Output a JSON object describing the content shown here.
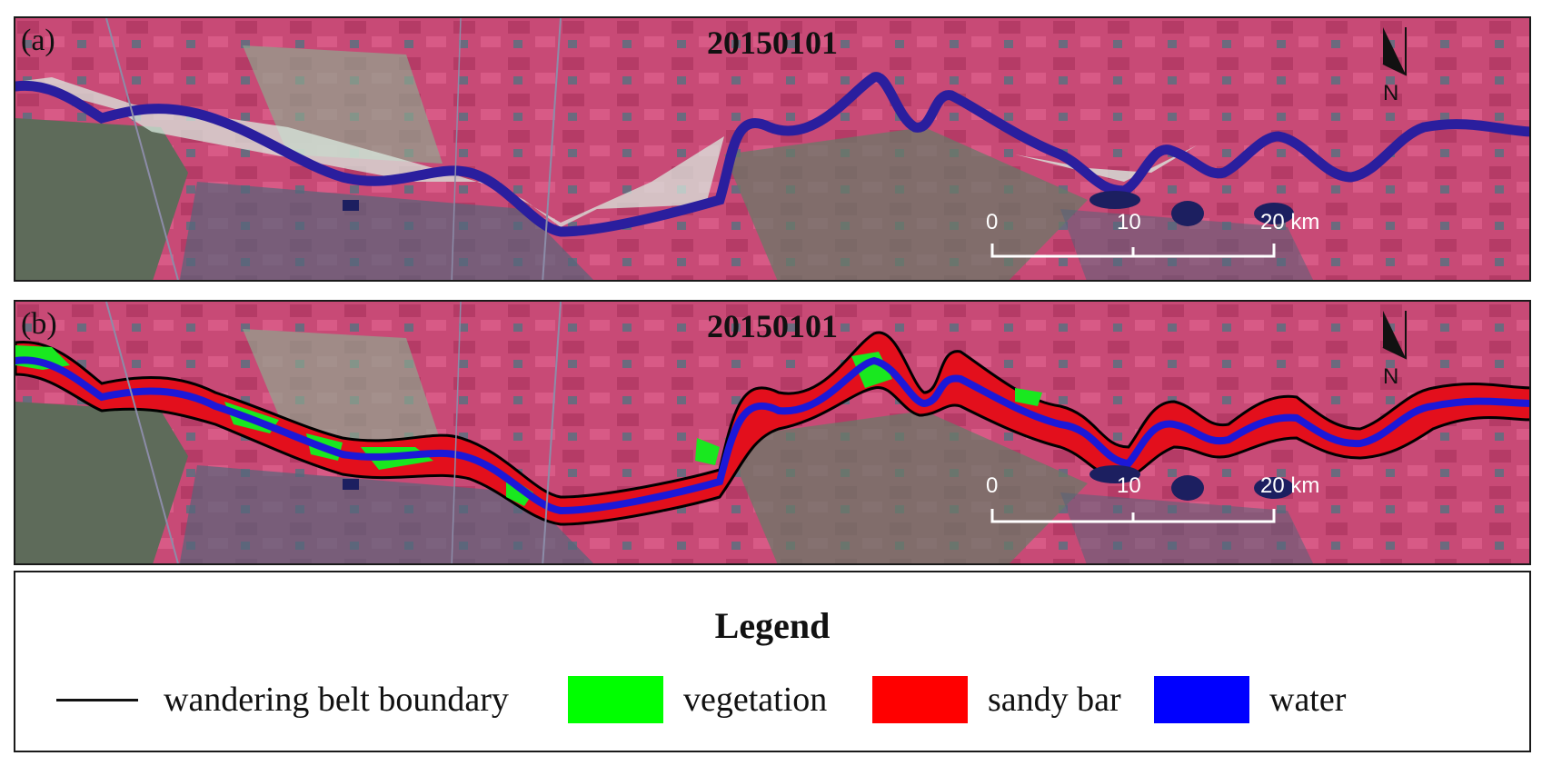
{
  "panels": [
    {
      "label": "(a)",
      "date": "20150101"
    },
    {
      "label": "(b)",
      "date": "20150101"
    }
  ],
  "north_label": "N",
  "scale_bar": {
    "ticks": [
      "0",
      "10",
      "20 km"
    ]
  },
  "legend": {
    "title": "Legend",
    "items": [
      {
        "kind": "line",
        "label": "wandering belt boundary",
        "color": "#000000"
      },
      {
        "kind": "swatch",
        "label": "vegetation",
        "color": "#00ff00"
      },
      {
        "kind": "swatch",
        "label": "sandy bar",
        "color": "#ff0000"
      },
      {
        "kind": "swatch",
        "label": "water",
        "color": "#0000ff"
      }
    ]
  },
  "colors": {
    "false_color_land": "#c24a73",
    "river_water": "#2a1e9e",
    "sand_bars": "#d8e8e0",
    "urban": "#4a5a6a",
    "hills": "#5a6a40"
  }
}
